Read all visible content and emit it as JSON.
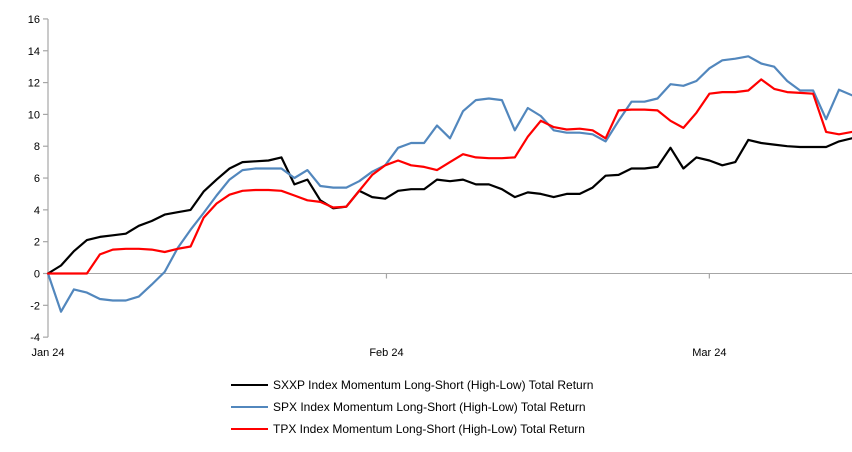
{
  "chart_data": {
    "type": "line",
    "title": "",
    "xlabel": "",
    "ylabel": "",
    "ylim": [
      -4,
      16
    ],
    "y_ticks": [
      16,
      14,
      12,
      10,
      8,
      6,
      4,
      2,
      0,
      -2,
      -4
    ],
    "x_ticks": [
      {
        "label": "Jan 24",
        "pos": 0
      },
      {
        "label": "Feb 24",
        "pos": 26.1
      },
      {
        "label": "Mar 24",
        "pos": 51.0
      }
    ],
    "grid": "zero-line-only",
    "legend_position": "bottom",
    "axis_color": "#a6a6a6",
    "series": [
      {
        "name": "SXXP Index Momentum Long-Short (High-Low) Total Return",
        "color": "#000000",
        "values": [
          0,
          0.5,
          1.4,
          2.1,
          2.3,
          2.4,
          2.5,
          3.0,
          3.3,
          3.7,
          3.85,
          4.0,
          5.15,
          5.9,
          6.6,
          7.0,
          7.05,
          7.1,
          7.3,
          5.6,
          5.9,
          4.6,
          4.1,
          4.2,
          5.2,
          4.8,
          4.7,
          5.2,
          5.3,
          5.3,
          5.9,
          5.8,
          5.9,
          5.6,
          5.6,
          5.3,
          4.8,
          5.1,
          5.0,
          4.8,
          5.0,
          5.0,
          5.4,
          6.15,
          6.2,
          6.6,
          6.6,
          6.7,
          7.9,
          6.6,
          7.3,
          7.1,
          6.8,
          7.0,
          8.4,
          8.2,
          8.1,
          8.0,
          7.95,
          7.95,
          7.95,
          8.3,
          8.5
        ]
      },
      {
        "name": "SPX Index Momentum Long-Short (High-Low) Total Return",
        "color": "#5287bd",
        "values": [
          0,
          -2.4,
          -1.0,
          -1.2,
          -1.6,
          -1.7,
          -1.7,
          -1.45,
          -0.7,
          0.1,
          1.6,
          2.75,
          3.8,
          4.9,
          5.9,
          6.5,
          6.6,
          6.6,
          6.6,
          6.0,
          6.5,
          5.5,
          5.4,
          5.4,
          5.8,
          6.4,
          6.8,
          7.9,
          8.2,
          8.2,
          9.3,
          8.5,
          10.2,
          10.9,
          11.0,
          10.9,
          9.0,
          10.4,
          9.9,
          9.0,
          8.85,
          8.85,
          8.75,
          8.3,
          9.6,
          10.8,
          10.8,
          11.0,
          11.9,
          11.8,
          12.1,
          12.9,
          13.4,
          13.5,
          13.65,
          13.2,
          13.0,
          12.1,
          11.5,
          11.5,
          9.7,
          11.55,
          11.2
        ]
      },
      {
        "name": "TPX Index Momentum Long-Short (High-Low) Total Return",
        "color": "#ff0000",
        "values": [
          0,
          0,
          0,
          0,
          1.2,
          1.5,
          1.55,
          1.55,
          1.5,
          1.35,
          1.55,
          1.7,
          3.5,
          4.4,
          4.95,
          5.2,
          5.25,
          5.25,
          5.2,
          4.9,
          4.6,
          4.5,
          4.15,
          4.2,
          5.2,
          6.2,
          6.8,
          7.1,
          6.8,
          6.7,
          6.5,
          7.0,
          7.5,
          7.3,
          7.25,
          7.25,
          7.3,
          8.6,
          9.6,
          9.2,
          9.05,
          9.1,
          9.0,
          8.5,
          10.25,
          10.3,
          10.3,
          10.25,
          9.6,
          9.15,
          10.1,
          11.3,
          11.4,
          11.4,
          11.5,
          12.2,
          11.6,
          11.4,
          11.35,
          11.3,
          8.9,
          8.75,
          8.9
        ]
      }
    ]
  }
}
